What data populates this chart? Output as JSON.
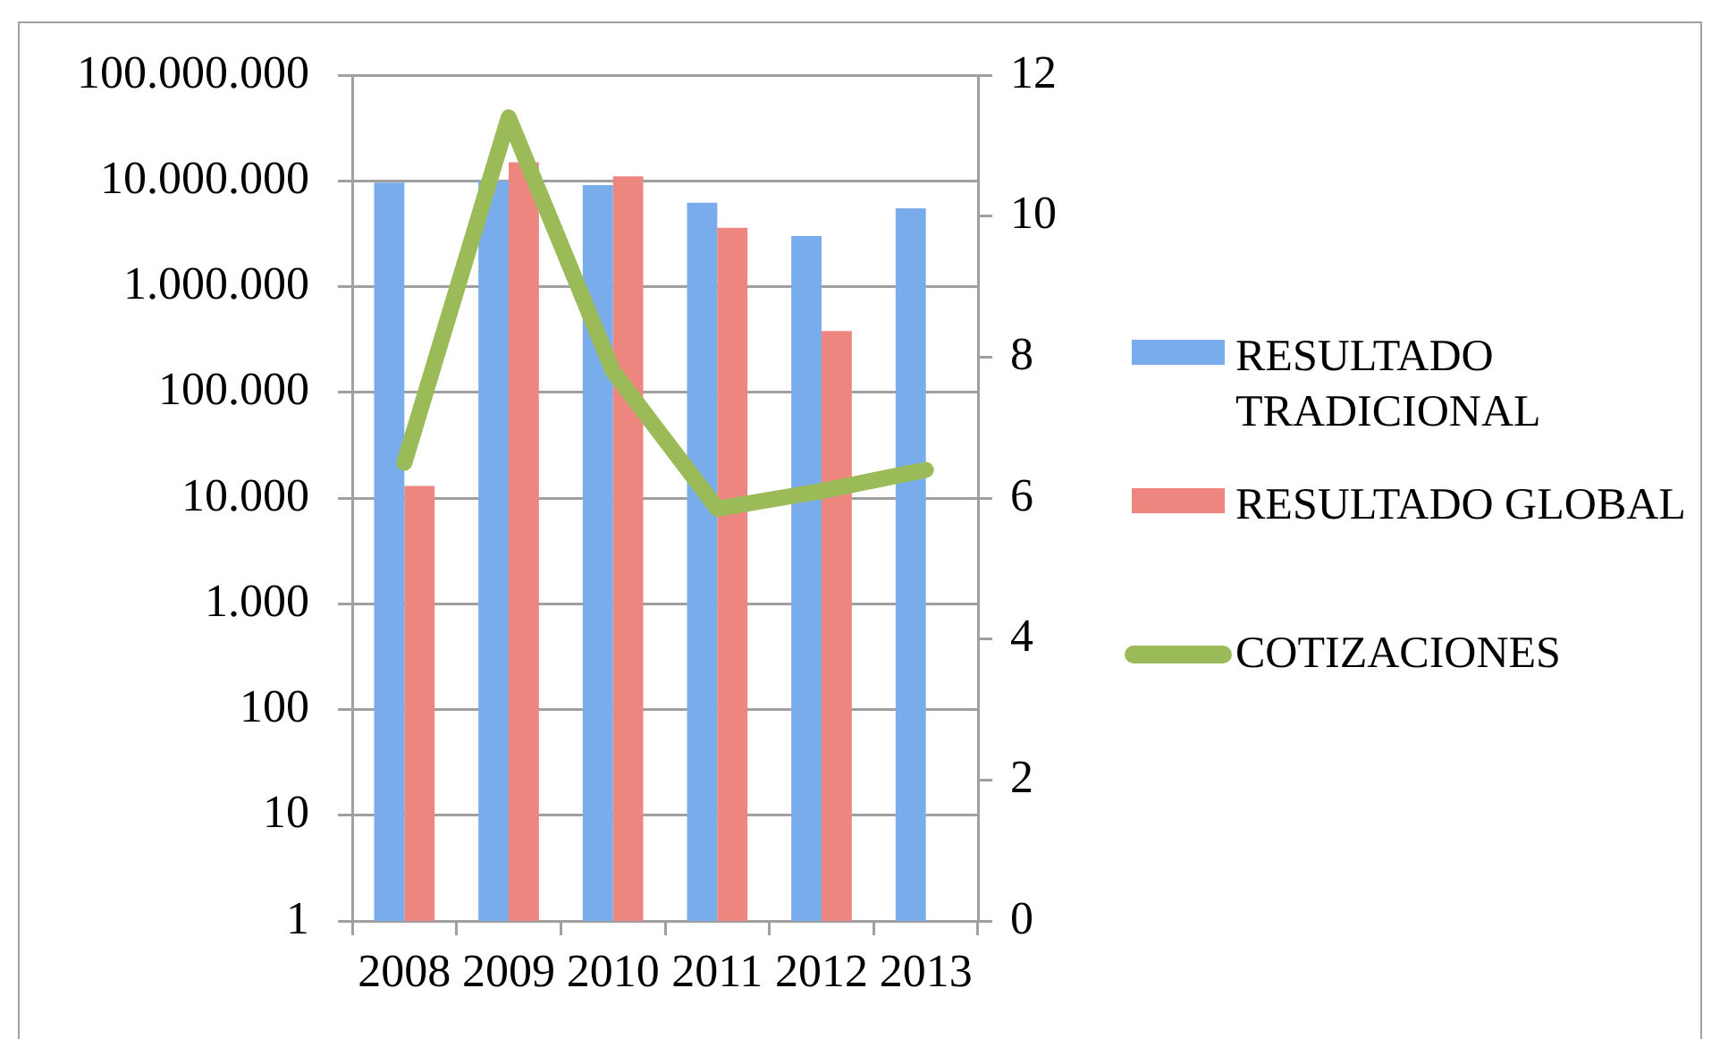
{
  "chart_data": {
    "type": "bar",
    "categories": [
      "2008",
      "2009",
      "2010",
      "2011",
      "2012",
      "2013"
    ],
    "series": [
      {
        "name": "RESULTADO TRADICIONAL",
        "color": "#79acea",
        "values": [
          9600000,
          10000000,
          9100000,
          6200000,
          3000000,
          5500000
        ]
      },
      {
        "name": "RESULTADO GLOBAL",
        "color": "#ee8680",
        "values": [
          13000,
          15000000,
          11000000,
          3600000,
          380000,
          null
        ]
      },
      {
        "name": "COTIZACIONES",
        "type": "line",
        "axis": "y2",
        "color": "#9bbb59",
        "values": [
          6.5,
          11.4,
          7.8,
          5.85,
          6.1,
          6.4
        ]
      }
    ],
    "log": "y",
    "ylim": [
      1,
      100000000
    ],
    "yticks": [
      1,
      10,
      100,
      {
        "value": 1000,
        "label": "1.000"
      },
      {
        "value": 10000,
        "label": "10.000"
      },
      {
        "value": 100000,
        "label": "100.000"
      },
      {
        "value": 1000000,
        "label": "1.000.000"
      },
      {
        "value": 10000000,
        "label": "10.000.000"
      },
      {
        "value": 100000000,
        "label": "100.000.000"
      }
    ],
    "y2lim": [
      0,
      12
    ],
    "y2ticks": [
      0,
      2,
      4,
      6,
      8,
      10,
      12
    ],
    "grid": "y",
    "legend": "right"
  }
}
